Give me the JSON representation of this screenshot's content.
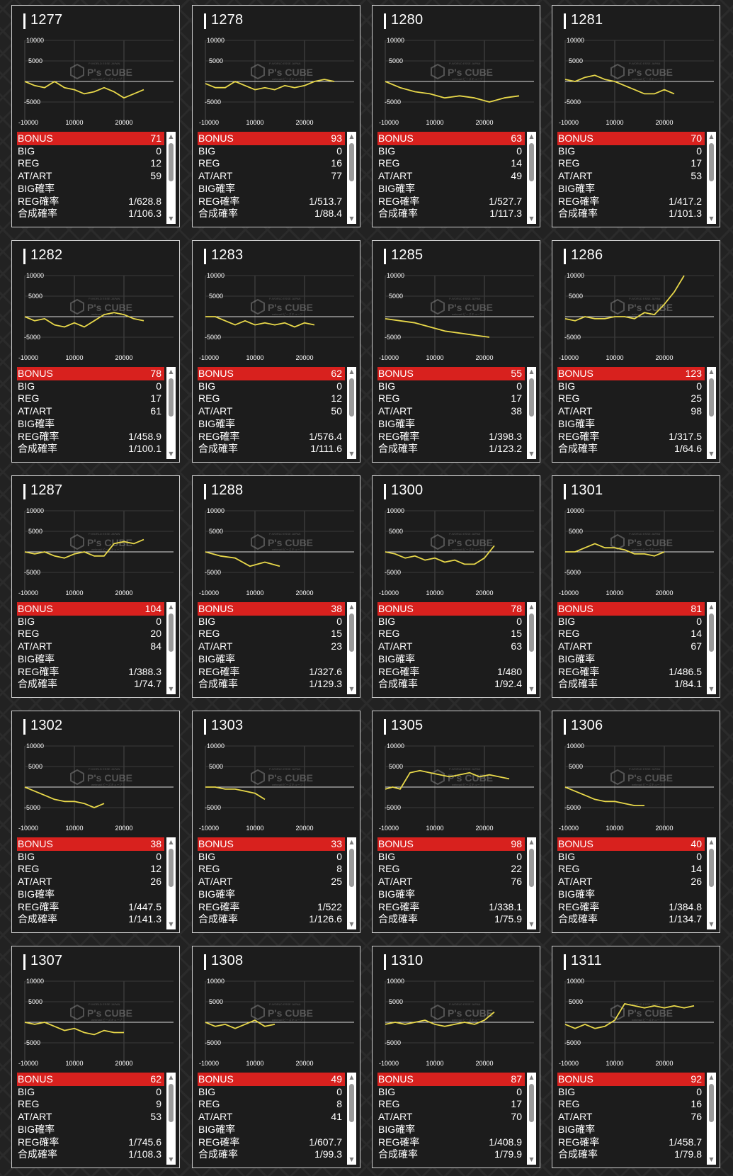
{
  "labels": {
    "bonus": "BONUS",
    "big": "BIG",
    "reg": "REG",
    "at": "AT/ART",
    "big_prob": "BIG確率",
    "reg_prob": "REG確率",
    "total_prob": "合成確率"
  },
  "watermark": {
    "brand": "P's CUBE",
    "line1": "P-WORLD ESSE JAPAN",
    "line2": "webmail ピーズキューブ"
  },
  "chart_axes": {
    "y_ticks": [
      "10000",
      "5000",
      "-5000",
      "-10000"
    ],
    "x_ticks": [
      "10000",
      "20000"
    ]
  },
  "icons": {
    "scroll_up": "scroll-up-arrow-icon",
    "scroll_down": "scroll-down-arrow-icon"
  },
  "colors": {
    "bonus_bg": "#d8211e",
    "line": "#e8d84a",
    "card_bg": "#1c1c1c"
  },
  "machines": [
    {
      "number": "1277",
      "bonus": "71",
      "big": "0",
      "reg": "12",
      "at": "59",
      "big_prob": "",
      "reg_prob": "1/628.8",
      "total_prob": "1/106.3",
      "chart_data": {
        "type": "line",
        "x": [
          0,
          2000,
          4000,
          6000,
          8000,
          10000,
          12000,
          14000,
          16000,
          18000,
          20000,
          22000,
          24000
        ],
        "y": [
          0,
          -1000,
          -1500,
          0,
          -1500,
          -2000,
          -3000,
          -2500,
          -1500,
          -2500,
          -4000,
          -3000,
          -2000
        ]
      }
    },
    {
      "number": "1278",
      "bonus": "93",
      "big": "0",
      "reg": "16",
      "at": "77",
      "big_prob": "",
      "reg_prob": "1/513.7",
      "total_prob": "1/88.4",
      "chart_data": {
        "type": "line",
        "x": [
          0,
          2000,
          4000,
          6000,
          8000,
          10000,
          12000,
          14000,
          16000,
          18000,
          20000,
          22000,
          24000,
          26000
        ],
        "y": [
          -500,
          -1500,
          -1500,
          0,
          -1000,
          -2000,
          -1500,
          -2000,
          -1000,
          -1500,
          -1000,
          0,
          500,
          0
        ]
      }
    },
    {
      "number": "1280",
      "bonus": "63",
      "big": "0",
      "reg": "14",
      "at": "49",
      "big_prob": "",
      "reg_prob": "1/527.7",
      "total_prob": "1/117.3",
      "chart_data": {
        "type": "line",
        "x": [
          0,
          3000,
          6000,
          9000,
          12000,
          15000,
          18000,
          21000,
          24000,
          27000
        ],
        "y": [
          0,
          -1500,
          -2500,
          -3000,
          -4000,
          -3500,
          -4000,
          -5000,
          -4000,
          -3500
        ]
      }
    },
    {
      "number": "1281",
      "bonus": "70",
      "big": "0",
      "reg": "17",
      "at": "53",
      "big_prob": "",
      "reg_prob": "1/417.2",
      "total_prob": "1/101.3",
      "chart_data": {
        "type": "line",
        "x": [
          0,
          2000,
          4000,
          6000,
          8000,
          10000,
          12000,
          14000,
          16000,
          18000,
          20000,
          22000
        ],
        "y": [
          500,
          0,
          1000,
          1500,
          500,
          0,
          -1000,
          -2000,
          -3000,
          -3000,
          -2000,
          -3000
        ]
      }
    },
    {
      "number": "1282",
      "bonus": "78",
      "big": "0",
      "reg": "17",
      "at": "61",
      "big_prob": "",
      "reg_prob": "1/458.9",
      "total_prob": "1/100.1",
      "chart_data": {
        "type": "line",
        "x": [
          0,
          2000,
          4000,
          6000,
          8000,
          10000,
          12000,
          14000,
          16000,
          18000,
          20000,
          22000,
          24000
        ],
        "y": [
          0,
          -1000,
          -500,
          -2000,
          -2500,
          -1500,
          -2500,
          -1000,
          500,
          1000,
          500,
          -500,
          -1000
        ]
      }
    },
    {
      "number": "1283",
      "bonus": "62",
      "big": "0",
      "reg": "12",
      "at": "50",
      "big_prob": "",
      "reg_prob": "1/576.4",
      "total_prob": "1/111.6",
      "chart_data": {
        "type": "line",
        "x": [
          0,
          2000,
          4000,
          6000,
          8000,
          10000,
          12000,
          14000,
          16000,
          18000,
          20000,
          22000
        ],
        "y": [
          0,
          0,
          -1000,
          -2000,
          -1000,
          -2000,
          -1500,
          -2000,
          -1500,
          -2500,
          -1500,
          -2000
        ]
      }
    },
    {
      "number": "1285",
      "bonus": "55",
      "big": "0",
      "reg": "17",
      "at": "38",
      "big_prob": "",
      "reg_prob": "1/398.3",
      "total_prob": "1/123.2",
      "chart_data": {
        "type": "line",
        "x": [
          0,
          3000,
          6000,
          9000,
          12000,
          15000,
          18000,
          21000
        ],
        "y": [
          -500,
          -1000,
          -1500,
          -2500,
          -3500,
          -4000,
          -4500,
          -5000
        ]
      }
    },
    {
      "number": "1286",
      "bonus": "123",
      "big": "0",
      "reg": "25",
      "at": "98",
      "big_prob": "",
      "reg_prob": "1/317.5",
      "total_prob": "1/64.6",
      "chart_data": {
        "type": "line",
        "x": [
          0,
          2000,
          4000,
          6000,
          8000,
          10000,
          12000,
          14000,
          16000,
          18000,
          20000,
          22000,
          24000
        ],
        "y": [
          -500,
          -1000,
          0,
          -500,
          -500,
          0,
          0,
          -500,
          1000,
          500,
          3000,
          6000,
          10000
        ]
      }
    },
    {
      "number": "1287",
      "bonus": "104",
      "big": "0",
      "reg": "20",
      "at": "84",
      "big_prob": "",
      "reg_prob": "1/388.3",
      "total_prob": "1/74.7",
      "chart_data": {
        "type": "line",
        "x": [
          0,
          2000,
          4000,
          6000,
          8000,
          10000,
          12000,
          14000,
          16000,
          18000,
          20000,
          22000,
          24000
        ],
        "y": [
          0,
          -500,
          0,
          -1000,
          -1500,
          -500,
          0,
          -1000,
          -1000,
          2000,
          2500,
          2000,
          3000
        ]
      }
    },
    {
      "number": "1288",
      "bonus": "38",
      "big": "0",
      "reg": "15",
      "at": "23",
      "big_prob": "",
      "reg_prob": "1/327.6",
      "total_prob": "1/129.3",
      "chart_data": {
        "type": "line",
        "x": [
          0,
          3000,
          6000,
          9000,
          12000,
          15000
        ],
        "y": [
          0,
          -1000,
          -1500,
          -3500,
          -2500,
          -3500
        ]
      }
    },
    {
      "number": "1300",
      "bonus": "78",
      "big": "0",
      "reg": "15",
      "at": "63",
      "big_prob": "",
      "reg_prob": "1/480",
      "total_prob": "1/92.4",
      "chart_data": {
        "type": "line",
        "x": [
          0,
          2000,
          4000,
          6000,
          8000,
          10000,
          12000,
          14000,
          16000,
          18000,
          20000,
          22000
        ],
        "y": [
          0,
          -500,
          -1500,
          -1000,
          -2000,
          -1500,
          -2500,
          -2000,
          -3000,
          -3000,
          -1500,
          1500
        ]
      }
    },
    {
      "number": "1301",
      "bonus": "81",
      "big": "0",
      "reg": "14",
      "at": "67",
      "big_prob": "",
      "reg_prob": "1/486.5",
      "total_prob": "1/84.1",
      "chart_data": {
        "type": "line",
        "x": [
          0,
          2000,
          4000,
          6000,
          8000,
          10000,
          12000,
          14000,
          16000,
          18000,
          20000
        ],
        "y": [
          0,
          0,
          1000,
          2000,
          1000,
          1000,
          500,
          -500,
          -500,
          -1000,
          0
        ]
      }
    },
    {
      "number": "1302",
      "bonus": "38",
      "big": "0",
      "reg": "12",
      "at": "26",
      "big_prob": "",
      "reg_prob": "1/447.5",
      "total_prob": "1/141.3",
      "chart_data": {
        "type": "line",
        "x": [
          0,
          2000,
          4000,
          6000,
          8000,
          10000,
          12000,
          14000,
          16000
        ],
        "y": [
          0,
          -1000,
          -2000,
          -3000,
          -3500,
          -3500,
          -4000,
          -5000,
          -4000
        ]
      }
    },
    {
      "number": "1303",
      "bonus": "33",
      "big": "0",
      "reg": "8",
      "at": "25",
      "big_prob": "",
      "reg_prob": "1/522",
      "total_prob": "1/126.6",
      "chart_data": {
        "type": "line",
        "x": [
          0,
          2000,
          4000,
          6000,
          8000,
          10000,
          12000
        ],
        "y": [
          0,
          0,
          -500,
          -500,
          -1000,
          -1500,
          -3000
        ]
      }
    },
    {
      "number": "1305",
      "bonus": "98",
      "big": "0",
      "reg": "22",
      "at": "76",
      "big_prob": "",
      "reg_prob": "1/338.1",
      "total_prob": "1/75.9",
      "chart_data": {
        "type": "line",
        "x": [
          0,
          1500,
          3000,
          5000,
          7000,
          9000,
          11000,
          13000,
          15000,
          17000,
          19000,
          21000,
          23000,
          25000
        ],
        "y": [
          -500,
          0,
          -500,
          3500,
          4000,
          3500,
          3000,
          2500,
          3000,
          3500,
          2500,
          3000,
          2500,
          2000
        ]
      }
    },
    {
      "number": "1306",
      "bonus": "40",
      "big": "0",
      "reg": "14",
      "at": "26",
      "big_prob": "",
      "reg_prob": "1/384.8",
      "total_prob": "1/134.7",
      "chart_data": {
        "type": "line",
        "x": [
          0,
          2000,
          4000,
          6000,
          8000,
          10000,
          12000,
          14000,
          16000
        ],
        "y": [
          0,
          -1000,
          -2000,
          -3000,
          -3500,
          -3500,
          -4000,
          -4500,
          -4500
        ]
      }
    },
    {
      "number": "1307",
      "bonus": "62",
      "big": "0",
      "reg": "9",
      "at": "53",
      "big_prob": "",
      "reg_prob": "1/745.6",
      "total_prob": "1/108.3",
      "chart_data": {
        "type": "line",
        "x": [
          0,
          2000,
          4000,
          6000,
          8000,
          10000,
          12000,
          14000,
          16000,
          18000,
          20000
        ],
        "y": [
          0,
          -500,
          0,
          -1000,
          -2000,
          -1500,
          -2500,
          -3000,
          -2000,
          -2500,
          -2500
        ]
      }
    },
    {
      "number": "1308",
      "bonus": "49",
      "big": "0",
      "reg": "8",
      "at": "41",
      "big_prob": "",
      "reg_prob": "1/607.7",
      "total_prob": "1/99.3",
      "chart_data": {
        "type": "line",
        "x": [
          0,
          2000,
          4000,
          6000,
          8000,
          10000,
          12000,
          14000
        ],
        "y": [
          0,
          -1000,
          -500,
          -1500,
          -500,
          500,
          -1000,
          -500
        ]
      }
    },
    {
      "number": "1310",
      "bonus": "87",
      "big": "0",
      "reg": "17",
      "at": "70",
      "big_prob": "",
      "reg_prob": "1/408.9",
      "total_prob": "1/79.9",
      "chart_data": {
        "type": "line",
        "x": [
          0,
          2000,
          4000,
          6000,
          8000,
          10000,
          12000,
          14000,
          16000,
          18000,
          20000,
          22000
        ],
        "y": [
          -500,
          0,
          -500,
          0,
          500,
          -500,
          -1000,
          -500,
          0,
          -500,
          500,
          2500
        ]
      }
    },
    {
      "number": "1311",
      "bonus": "92",
      "big": "0",
      "reg": "16",
      "at": "76",
      "big_prob": "",
      "reg_prob": "1/458.7",
      "total_prob": "1/79.8",
      "chart_data": {
        "type": "line",
        "x": [
          0,
          2000,
          4000,
          6000,
          8000,
          10000,
          12000,
          14000,
          16000,
          18000,
          20000,
          22000,
          24000,
          26000
        ],
        "y": [
          -500,
          -1500,
          -500,
          -1500,
          -1000,
          500,
          4500,
          4000,
          3500,
          4000,
          3500,
          4000,
          3500,
          4000
        ]
      }
    }
  ]
}
